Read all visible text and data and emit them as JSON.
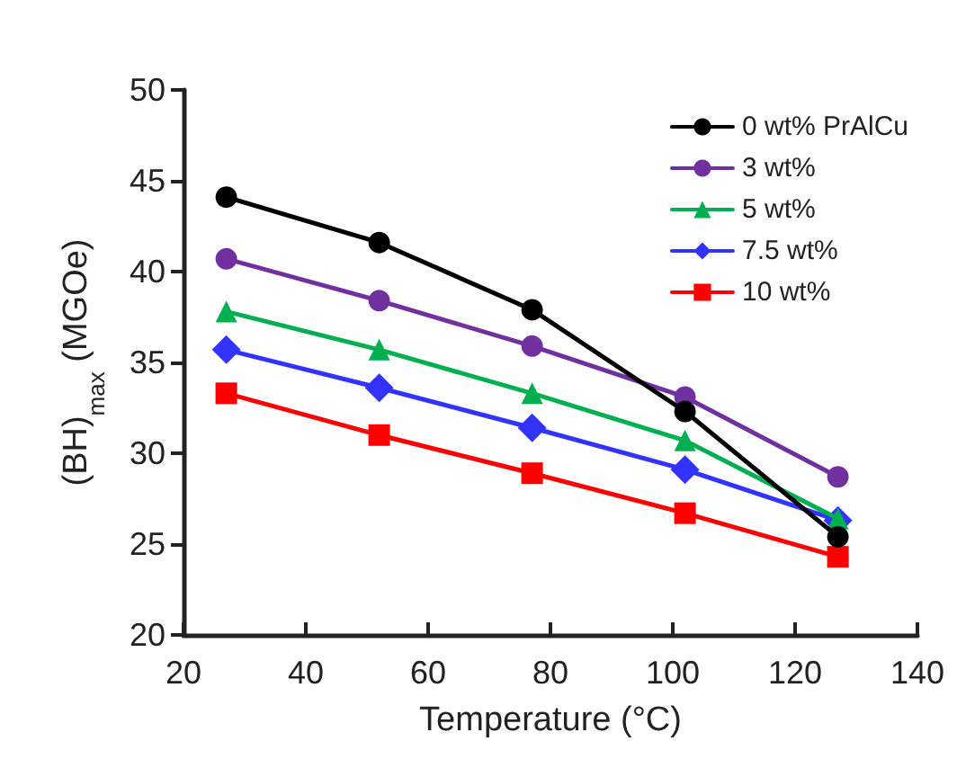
{
  "chart_data": {
    "type": "line",
    "xlabel": "Temperature (°C)",
    "ylabel": "(BH)$_{max}$ (MGOe)",
    "x": [
      27,
      52,
      77,
      102,
      127
    ],
    "xlim": [
      20,
      140
    ],
    "xticks": [
      20,
      40,
      60,
      80,
      100,
      120,
      140
    ],
    "ylim": [
      20,
      50
    ],
    "yticks": [
      20,
      25,
      30,
      35,
      40,
      45,
      50
    ],
    "grid": false,
    "legend": "top right",
    "line_style": "solid",
    "series": [
      {
        "name": "0 wt% PrAlCu",
        "color": "#000000",
        "marker": "circle",
        "values": [
          44.1,
          41.6,
          37.9,
          32.3,
          25.4
        ]
      },
      {
        "name": "3 wt%",
        "color": "#7030a0",
        "marker": "circle",
        "values": [
          40.7,
          38.4,
          35.9,
          33.1,
          28.7
        ]
      },
      {
        "name": "5 wt%",
        "color": "#00b050",
        "marker": "triangle",
        "values": [
          37.8,
          35.7,
          33.3,
          30.7,
          26.4
        ]
      },
      {
        "name": "7.5 wt%",
        "color": "#3333ff",
        "marker": "diamond",
        "values": [
          35.7,
          33.6,
          31.4,
          29.1,
          26.3
        ]
      },
      {
        "name": "10 wt%",
        "color": "#ff0000",
        "marker": "square",
        "values": [
          33.3,
          31.0,
          28.9,
          26.7,
          24.3
        ]
      }
    ]
  }
}
